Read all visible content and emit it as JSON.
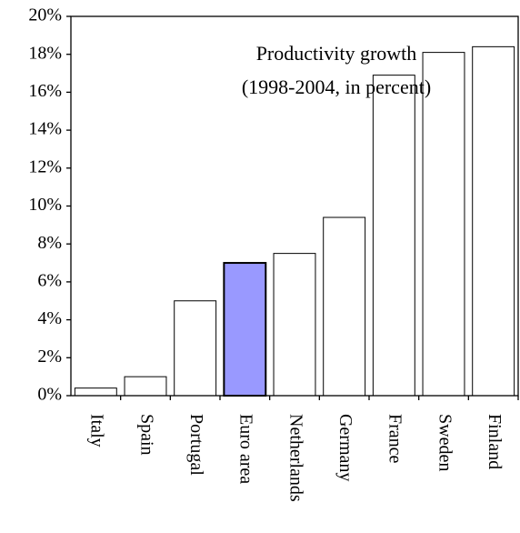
{
  "chart_data": {
    "type": "bar",
    "title": "Productivity growth",
    "subtitle": "(1998-2004, in percent)",
    "categories": [
      "Italy",
      "Spain",
      "Portugal",
      "Euro area",
      "Netherlands",
      "Germany",
      "France",
      "Sweden",
      "Finland"
    ],
    "values": [
      0.4,
      1.0,
      5.0,
      7.0,
      7.5,
      9.4,
      16.9,
      18.1,
      18.4
    ],
    "colors": [
      "#ffffff",
      "#ffffff",
      "#ffffff",
      "#9999ff",
      "#ffffff",
      "#ffffff",
      "#ffffff",
      "#ffffff",
      "#ffffff"
    ],
    "ylim": [
      0,
      20
    ],
    "yticks": [
      {
        "value": 0,
        "label": "0%"
      },
      {
        "value": 2,
        "label": "2%"
      },
      {
        "value": 4,
        "label": "4%"
      },
      {
        "value": 6,
        "label": "6%"
      },
      {
        "value": 8,
        "label": "8%"
      },
      {
        "value": 10,
        "label": "10%"
      },
      {
        "value": 12,
        "label": "12%"
      },
      {
        "value": 14,
        "label": "14%"
      },
      {
        "value": 16,
        "label": "16%"
      },
      {
        "value": 18,
        "label": "18%"
      },
      {
        "value": 20,
        "label": "20%"
      }
    ],
    "grid": false
  }
}
